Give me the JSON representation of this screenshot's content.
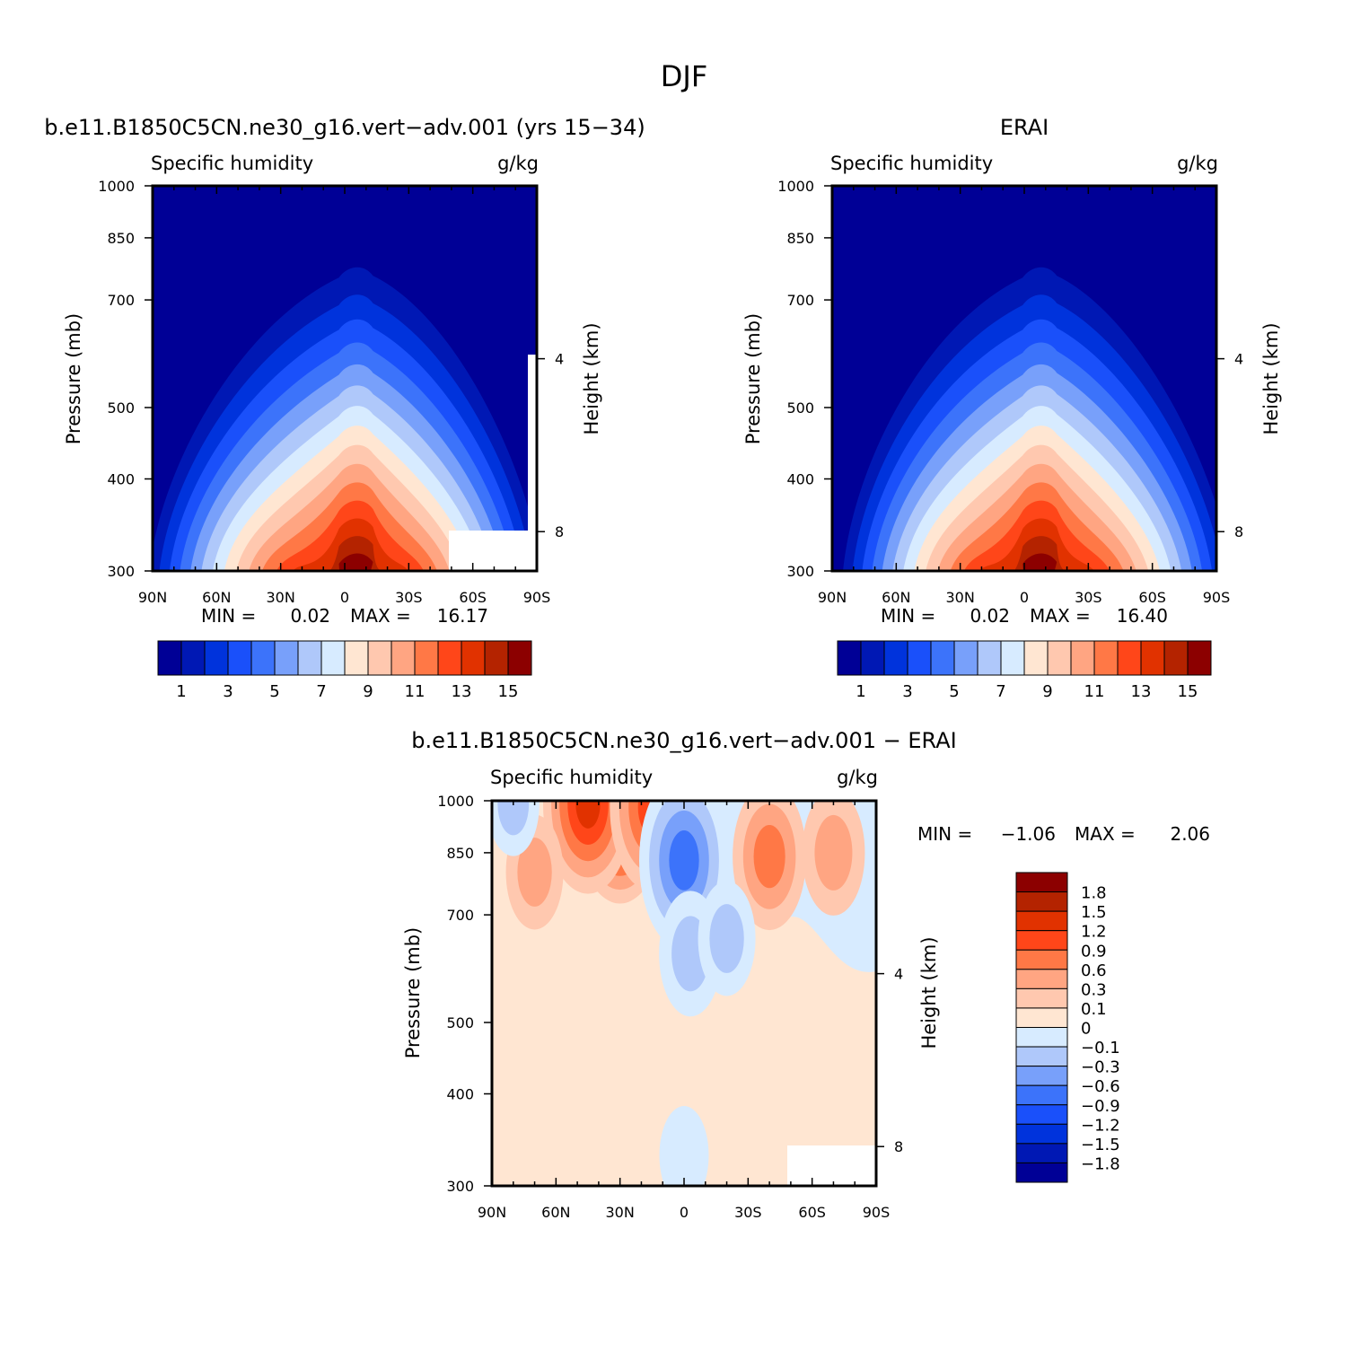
{
  "figure": {
    "title": "DJF"
  },
  "colors": {
    "abs_levels": [
      "#000096",
      "#0018B4",
      "#0033DC",
      "#1A50FA",
      "#3C73FA",
      "#78A0FA",
      "#AFC8FA",
      "#D7EBFF",
      "#FFE6D2",
      "#FFC8AF",
      "#FFA582",
      "#FF7846",
      "#FF4619",
      "#E13200",
      "#B42300",
      "#8C0000"
    ],
    "diff_levels": [
      "#8C0000",
      "#B42300",
      "#E13200",
      "#FF4619",
      "#FF7846",
      "#FFA582",
      "#FFC8AF",
      "#FFE6D2",
      "#D7EBFF",
      "#AFC8FA",
      "#78A0FA",
      "#3C73FA",
      "#1A50FA",
      "#0033DC",
      "#0018B4",
      "#000096"
    ]
  },
  "chart_data": [
    {
      "type": "heatmap",
      "panel": "model",
      "title": "b.e11.B1850C5CN.ne30_g16.vert−adv.001 (yrs 15−34)",
      "left_title": "Specific humidity",
      "units": "g/kg",
      "ylabel": "Pressure (mb)",
      "y2label": "Height (km)",
      "x_ticks": [
        "90N",
        "60N",
        "30N",
        "0",
        "30S",
        "60S",
        "90S"
      ],
      "y_ticks": [
        "300",
        "400",
        "500",
        "700",
        "850",
        "1000"
      ],
      "y2_ticks": [
        "8",
        "4"
      ],
      "xlim": [
        90,
        -90
      ],
      "ylim": [
        1000,
        300
      ],
      "min_label": "MIN =",
      "min_value": "0.02",
      "max_label": "MAX =",
      "max_value": "16.17",
      "field_min": 0.02,
      "field_max": 16.17,
      "colorbar_labels": [
        "1",
        "3",
        "5",
        "7",
        "9",
        "11",
        "13",
        "15"
      ],
      "peak_latitude": -4
    },
    {
      "type": "heatmap",
      "panel": "obs",
      "title": "ERAI",
      "left_title": "Specific humidity",
      "units": "g/kg",
      "ylabel": "Pressure (mb)",
      "y2label": "Height (km)",
      "x_ticks": [
        "90N",
        "60N",
        "30N",
        "0",
        "30S",
        "60S",
        "90S"
      ],
      "y_ticks": [
        "300",
        "400",
        "500",
        "700",
        "850",
        "1000"
      ],
      "y2_ticks": [
        "8",
        "4"
      ],
      "xlim": [
        90,
        -90
      ],
      "ylim": [
        1000,
        300
      ],
      "min_label": "MIN =",
      "min_value": "0.02",
      "max_label": "MAX =",
      "max_value": "16.40",
      "field_min": 0.02,
      "field_max": 16.4,
      "colorbar_labels": [
        "1",
        "3",
        "5",
        "7",
        "9",
        "11",
        "13",
        "15"
      ],
      "peak_latitude": -6
    },
    {
      "type": "heatmap",
      "panel": "diff",
      "title": "b.e11.B1850C5CN.ne30_g16.vert−adv.001 − ERAI",
      "left_title": "Specific humidity",
      "units": "g/kg",
      "ylabel": "Pressure (mb)",
      "y2label": "Height (km)",
      "x_ticks": [
        "90N",
        "60N",
        "30N",
        "0",
        "30S",
        "60S",
        "90S"
      ],
      "y_ticks": [
        "300",
        "400",
        "500",
        "700",
        "850",
        "1000"
      ],
      "y2_ticks": [
        "8",
        "4"
      ],
      "xlim": [
        90,
        -90
      ],
      "ylim": [
        1000,
        300
      ],
      "min_label": "MIN =",
      "min_value": "−1.06",
      "max_label": "MAX =",
      "max_value": "2.06",
      "field_min": -1.06,
      "field_max": 2.06,
      "colorbar_labels": [
        "1.8",
        "1.5",
        "1.2",
        "0.9",
        "0.6",
        "0.3",
        "0.1",
        "0",
        "−0.1",
        "−0.3",
        "−0.6",
        "−0.9",
        "−1.2",
        "−1.5",
        "−1.8"
      ],
      "contour_levels": [
        1.8,
        1.5,
        1.2,
        0.9,
        0.6,
        0.3,
        0.1,
        0,
        -0.1,
        -0.3,
        -0.6,
        -0.9,
        -1.2,
        -1.5,
        -1.8
      ],
      "features": [
        {
          "lat": 30,
          "p": 960,
          "value": 1.6
        },
        {
          "lat": 45,
          "p": 990,
          "value": 1.2
        },
        {
          "lat": 15,
          "p": 980,
          "value": 0.9
        },
        {
          "lat": -40,
          "p": 840,
          "value": 0.7
        },
        {
          "lat": 70,
          "p": 800,
          "value": 0.4
        },
        {
          "lat": -70,
          "p": 850,
          "value": 0.5
        },
        {
          "lat": 0,
          "p": 830,
          "value": -1.06
        },
        {
          "lat": -3,
          "p": 620,
          "value": -0.5
        },
        {
          "lat": 80,
          "p": 990,
          "value": -0.3
        },
        {
          "lat": -20,
          "p": 650,
          "value": -0.4
        },
        {
          "lat": 0,
          "p": 330,
          "value": -0.25
        }
      ]
    }
  ]
}
